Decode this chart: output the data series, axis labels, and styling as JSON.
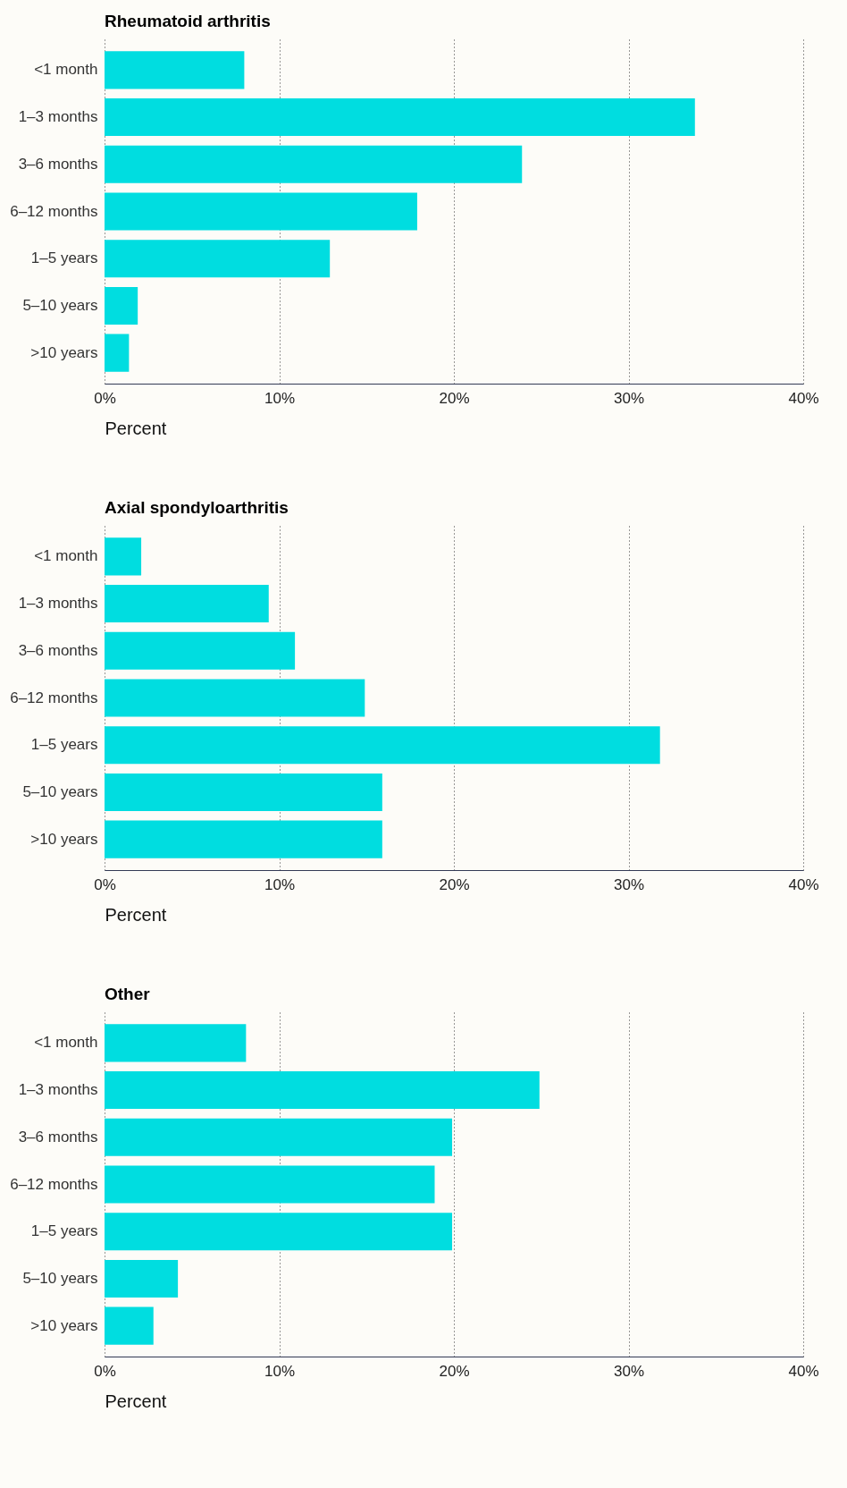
{
  "chart_data": [
    {
      "type": "bar",
      "orientation": "horizontal",
      "title": "Rheumatoid arthritis",
      "xlabel": "Percent",
      "categories": [
        "<1 month",
        "1–3 months",
        "3–6 months",
        "6–12 months",
        "1–5 years",
        "5–10 years",
        ">10 years"
      ],
      "values": [
        8,
        33.8,
        23.9,
        17.9,
        12.9,
        1.9,
        1.4
      ],
      "color": "#00dde0",
      "xlim": [
        0,
        40
      ],
      "xticks": [
        {
          "value": 0,
          "label": "0%"
        },
        {
          "value": 10,
          "label": "10%"
        },
        {
          "value": 20,
          "label": "20%"
        },
        {
          "value": 30,
          "label": "30%"
        },
        {
          "value": 40,
          "label": "40%"
        }
      ],
      "grid": "x"
    },
    {
      "type": "bar",
      "orientation": "horizontal",
      "title": "Axial spondyloarthritis",
      "xlabel": "Percent",
      "categories": [
        "<1 month",
        "1–3 months",
        "3–6 months",
        "6–12 months",
        "1–5 years",
        "5–10 years",
        ">10 years"
      ],
      "values": [
        2.1,
        9.4,
        10.9,
        14.9,
        31.8,
        15.9,
        15.9
      ],
      "color": "#00dde0",
      "xlim": [
        0,
        40
      ],
      "xticks": [
        {
          "value": 0,
          "label": "0%"
        },
        {
          "value": 10,
          "label": "10%"
        },
        {
          "value": 20,
          "label": "20%"
        },
        {
          "value": 30,
          "label": "30%"
        },
        {
          "value": 40,
          "label": "40%"
        }
      ],
      "grid": "x"
    },
    {
      "type": "bar",
      "orientation": "horizontal",
      "title": "Other",
      "xlabel": "Percent",
      "categories": [
        "<1 month",
        "1–3 months",
        "3–6 months",
        "6–12 months",
        "1–5 years",
        "5–10 years",
        ">10 years"
      ],
      "values": [
        8.1,
        24.9,
        19.9,
        18.9,
        19.9,
        4.2,
        2.8
      ],
      "color": "#00dde0",
      "xlim": [
        0,
        40
      ],
      "xticks": [
        {
          "value": 0,
          "label": "0%"
        },
        {
          "value": 10,
          "label": "10%"
        },
        {
          "value": 20,
          "label": "20%"
        },
        {
          "value": 30,
          "label": "30%"
        },
        {
          "value": 40,
          "label": "40%"
        }
      ],
      "grid": "x"
    }
  ]
}
